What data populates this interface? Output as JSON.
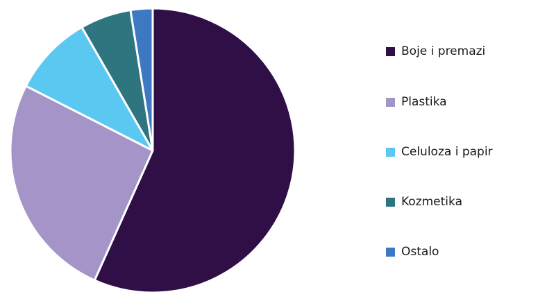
{
  "chart_data": {
    "type": "pie",
    "title": "",
    "slices": [
      {
        "label": "Boje i premazi",
        "value": 56.7,
        "color": "#2f0f45"
      },
      {
        "label": "Plastika",
        "value": 25.8,
        "color": "#a494c8"
      },
      {
        "label": "Celuloza i papir",
        "value": 9.2,
        "color": "#5bc8f2"
      },
      {
        "label": "Kozmetika",
        "value": 5.8,
        "color": "#2e7580"
      },
      {
        "label": "Ostalo",
        "value": 2.5,
        "color": "#3d78c2"
      }
    ],
    "start_angle_deg": 0,
    "direction": "clockwise",
    "legend_position": "right"
  }
}
